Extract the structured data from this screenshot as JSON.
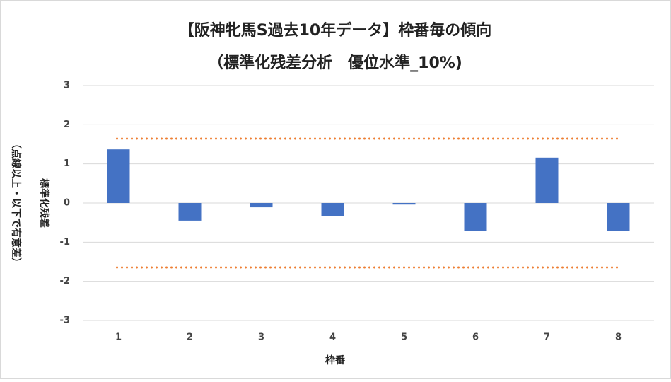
{
  "chart_data": {
    "type": "bar",
    "title": "【阪神牝馬S過去10年データ】枠番毎の傾向",
    "subtitle": "（標準化残差分析　優位水準_10%)",
    "x_label": "枠番",
    "y_label": [
      "標準化残差",
      "（点線以上・以下で有意差）"
    ],
    "categories": [
      "1",
      "2",
      "3",
      "4",
      "5",
      "6",
      "7",
      "8"
    ],
    "values": [
      1.37,
      -0.45,
      -0.11,
      -0.34,
      -0.04,
      -0.72,
      1.16,
      -0.72
    ],
    "color": "#4472c4",
    "reference_lines": {
      "values": [
        1.645,
        -1.645
      ],
      "color": "#ed7d31"
    },
    "ylim": [
      -3,
      3
    ],
    "yticks": [
      -3,
      -2,
      -1,
      0,
      1,
      2,
      3
    ],
    "grid": true
  }
}
